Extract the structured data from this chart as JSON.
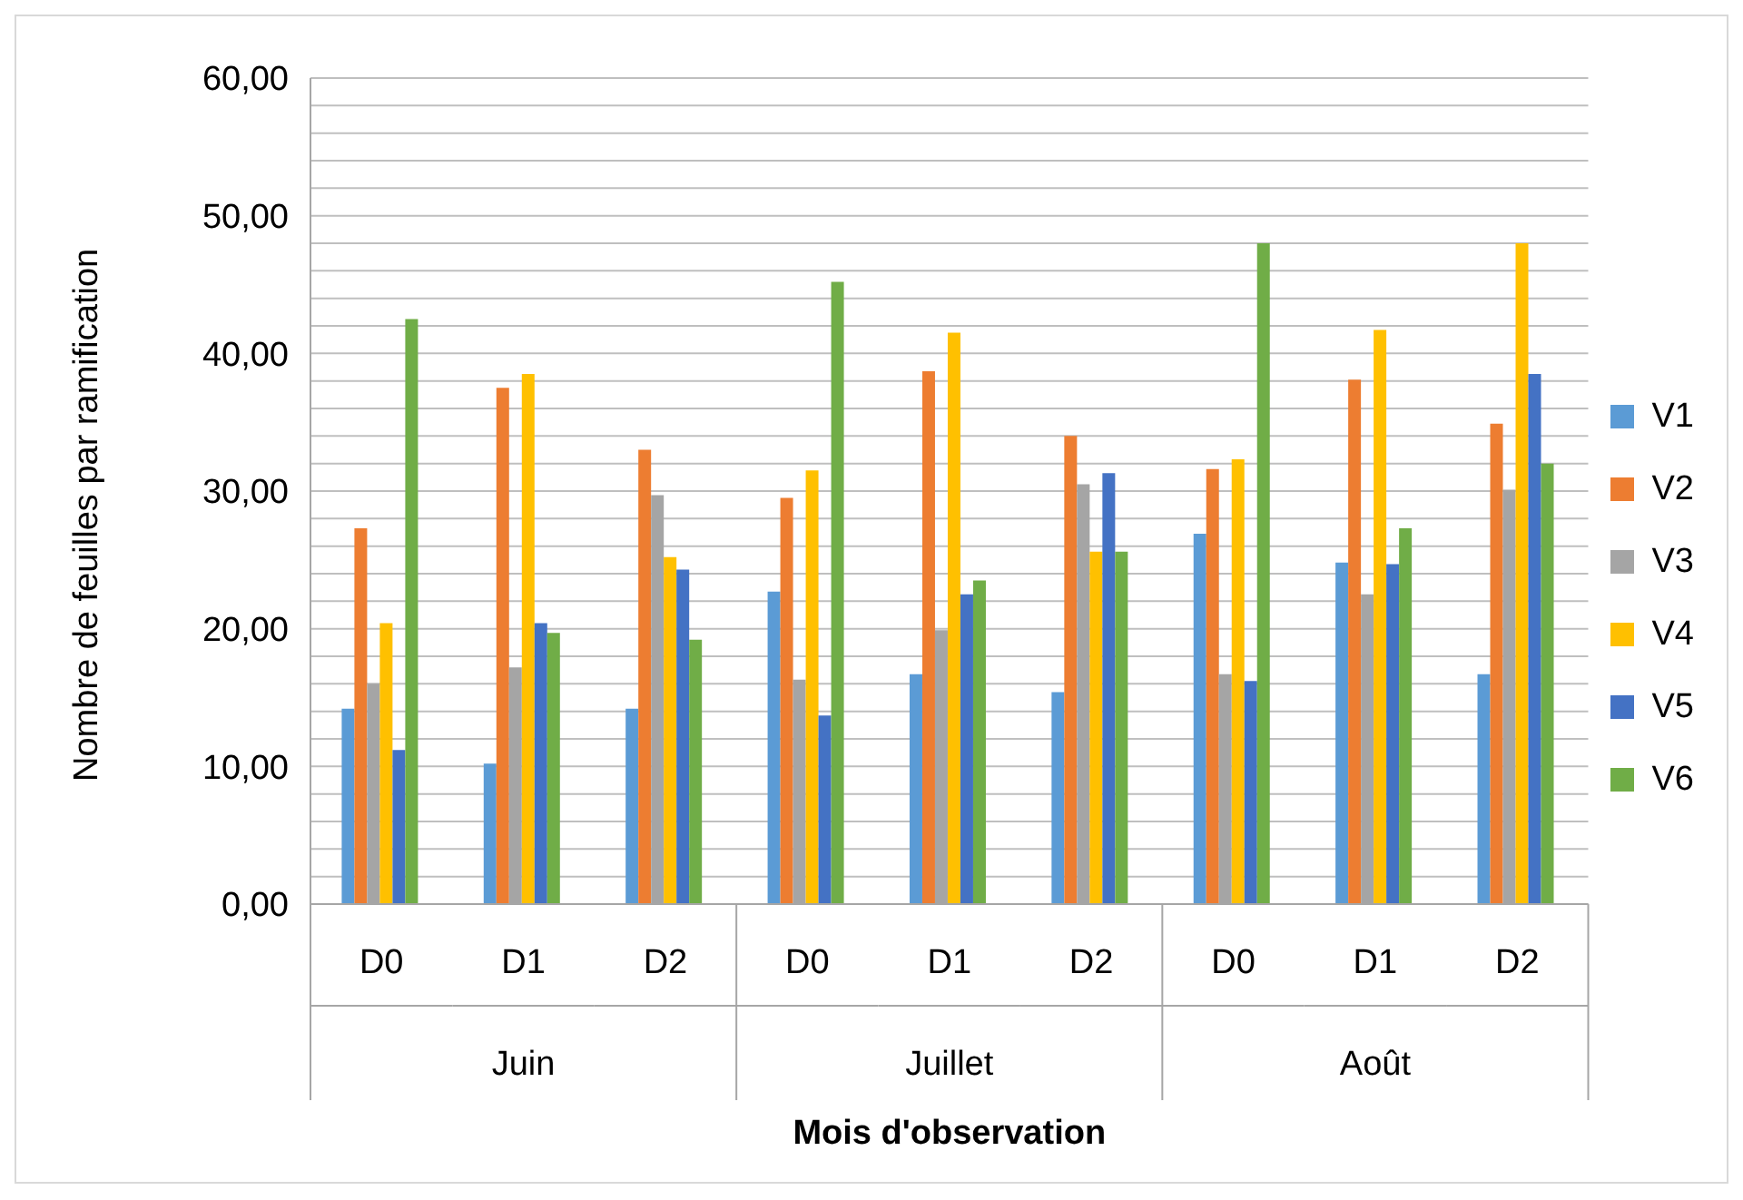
{
  "chart_data": {
    "type": "bar",
    "ylabel": "Nombre de feuilles par ramification",
    "xlabel": "Mois d'observation",
    "categories": [
      "D0",
      "D1",
      "D2",
      "D0",
      "D1",
      "D2",
      "D0",
      "D1",
      "D2"
    ],
    "annotations": [
      "Juin",
      "Juillet",
      "Août"
    ],
    "series": [
      {
        "name": "V1",
        "color": "#5b9bd5",
        "values": [
          14.2,
          10.2,
          14.2,
          22.7,
          16.7,
          15.4,
          26.9,
          24.8,
          16.7
        ]
      },
      {
        "name": "V2",
        "color": "#ed7d31",
        "values": [
          27.3,
          37.5,
          33.0,
          29.5,
          38.7,
          34.0,
          31.6,
          38.1,
          34.9
        ]
      },
      {
        "name": "V3",
        "color": "#a5a5a5",
        "values": [
          16.0,
          17.2,
          29.7,
          16.3,
          19.9,
          30.5,
          16.7,
          22.5,
          30.1
        ]
      },
      {
        "name": "V4",
        "color": "#ffc000",
        "values": [
          20.4,
          38.5,
          25.2,
          31.5,
          41.5,
          25.6,
          32.3,
          41.7,
          48.0
        ]
      },
      {
        "name": "V5",
        "color": "#4472c4",
        "values": [
          11.2,
          20.4,
          24.3,
          13.7,
          22.5,
          31.3,
          16.2,
          24.7,
          38.5
        ]
      },
      {
        "name": "V6",
        "color": "#70ad47",
        "values": [
          42.5,
          19.7,
          19.2,
          45.2,
          23.5,
          25.6,
          48.0,
          27.3,
          32.0
        ]
      }
    ],
    "ylim": [
      0,
      60
    ],
    "yticks": [
      {
        "value": 0,
        "label": "0,00"
      },
      {
        "value": 2,
        "label": null
      },
      {
        "value": 4,
        "label": null
      },
      {
        "value": 6,
        "label": null
      },
      {
        "value": 8,
        "label": null
      },
      {
        "value": 10,
        "label": "10,00"
      },
      {
        "value": 12,
        "label": null
      },
      {
        "value": 14,
        "label": null
      },
      {
        "value": 16,
        "label": null
      },
      {
        "value": 18,
        "label": null
      },
      {
        "value": 20,
        "label": "20,00"
      },
      {
        "value": 22,
        "label": null
      },
      {
        "value": 24,
        "label": null
      },
      {
        "value": 26,
        "label": null
      },
      {
        "value": 28,
        "label": null
      },
      {
        "value": 30,
        "label": "30,00"
      },
      {
        "value": 32,
        "label": null
      },
      {
        "value": 34,
        "label": null
      },
      {
        "value": 36,
        "label": null
      },
      {
        "value": 38,
        "label": null
      },
      {
        "value": 40,
        "label": "40,00"
      },
      {
        "value": 42,
        "label": null
      },
      {
        "value": 44,
        "label": null
      },
      {
        "value": 46,
        "label": null
      },
      {
        "value": 48,
        "label": null
      },
      {
        "value": 50,
        "label": "50,00"
      },
      {
        "value": 52,
        "label": null
      },
      {
        "value": 54,
        "label": null
      },
      {
        "value": 56,
        "label": null
      },
      {
        "value": 58,
        "label": null
      },
      {
        "value": 60,
        "label": "60,00"
      }
    ],
    "grid": "y",
    "legend": "right"
  }
}
